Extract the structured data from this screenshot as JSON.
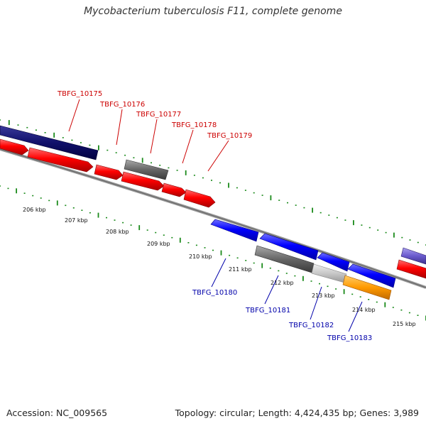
{
  "title": "Mycobacterium tuberculosis F11, complete genome",
  "footer": {
    "accession": "Accession: NC_009565",
    "summary": "Topology: circular; Length: 4,424,435 bp; Genes: 3,989"
  },
  "colors": {
    "top_label": "#cc0000",
    "bottom_label": "#0000aa",
    "tick": "#1a8a1a",
    "backbone": "#888888"
  },
  "kbp_labels": [
    "206 kbp",
    "207 kbp",
    "208 kbp",
    "209 kbp",
    "210 kbp",
    "211 kbp",
    "212 kbp",
    "213 kbp",
    "214 kbp",
    "215 kbp"
  ],
  "top_gene_labels": [
    "TBFG_10175",
    "TBFG_10176",
    "TBFG_10177",
    "TBFG_10178",
    "TBFG_10179"
  ],
  "bottom_gene_labels": [
    "TBFG_10180",
    "TBFG_10181",
    "TBFG_10182",
    "TBFG_10183"
  ]
}
